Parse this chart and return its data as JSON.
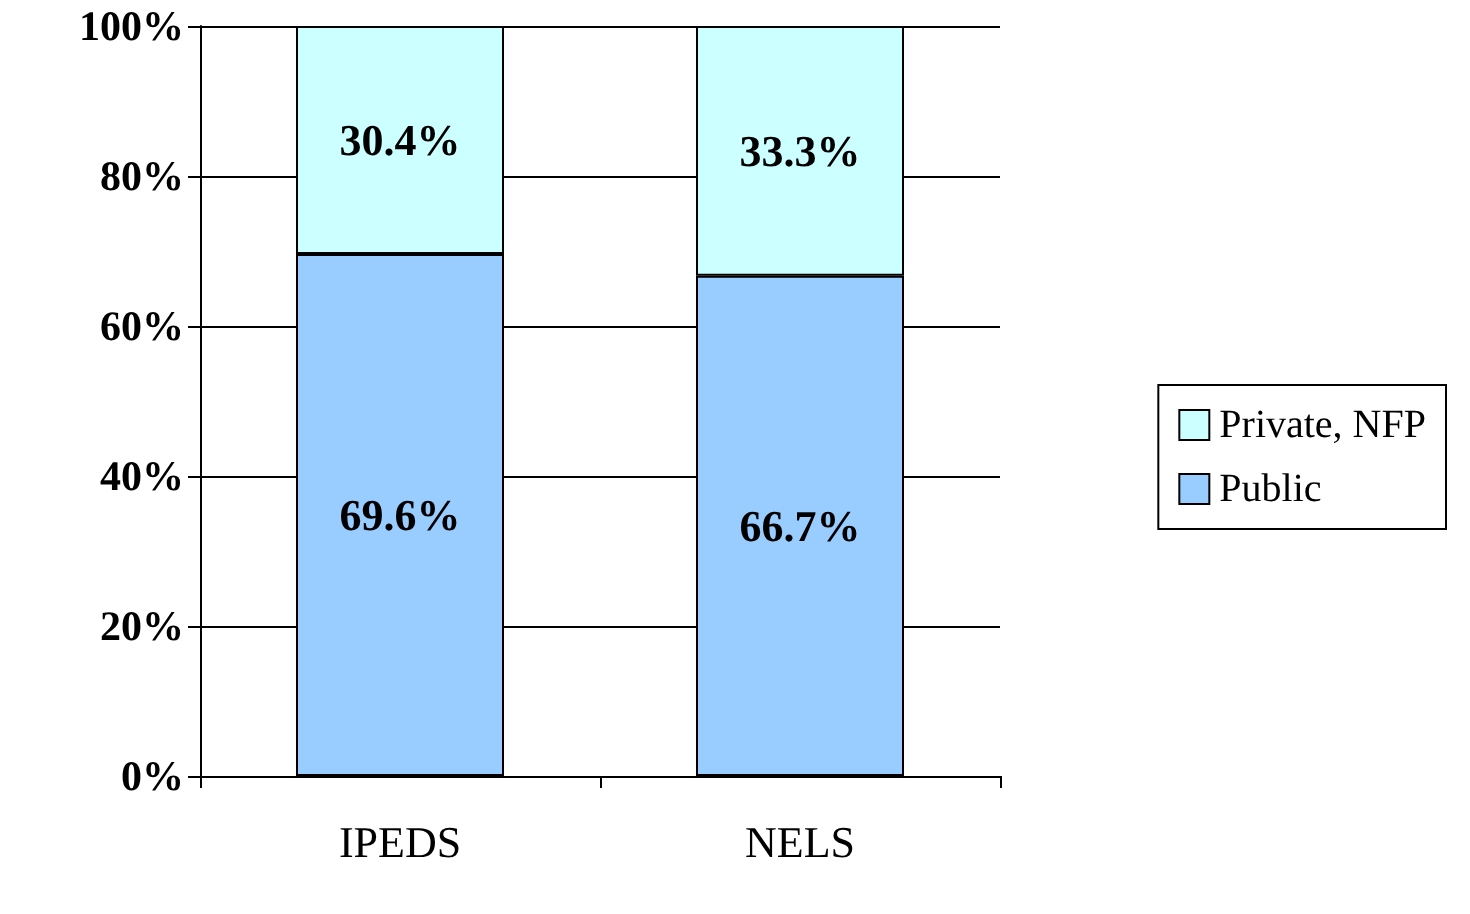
{
  "chart_data": {
    "type": "bar",
    "stacked": true,
    "categories": [
      "IPEDS",
      "NELS"
    ],
    "series": [
      {
        "name": "Public",
        "color": "#99ccff",
        "values": [
          69.6,
          66.7
        ],
        "value_labels": [
          "69.6%",
          "66.7%"
        ]
      },
      {
        "name": "Private, NFP",
        "color": "#ccffff",
        "values": [
          30.4,
          33.3
        ],
        "value_labels": [
          "30.4%",
          "33.3%"
        ]
      }
    ],
    "ylim": [
      0,
      100
    ],
    "yticks": [
      {
        "value": 0,
        "label": "0%"
      },
      {
        "value": 20,
        "label": "20%"
      },
      {
        "value": 40,
        "label": "40%"
      },
      {
        "value": 60,
        "label": "60%"
      },
      {
        "value": 80,
        "label": "80%"
      },
      {
        "value": 100,
        "label": "100%"
      }
    ],
    "grid": "y",
    "legend": "right"
  }
}
